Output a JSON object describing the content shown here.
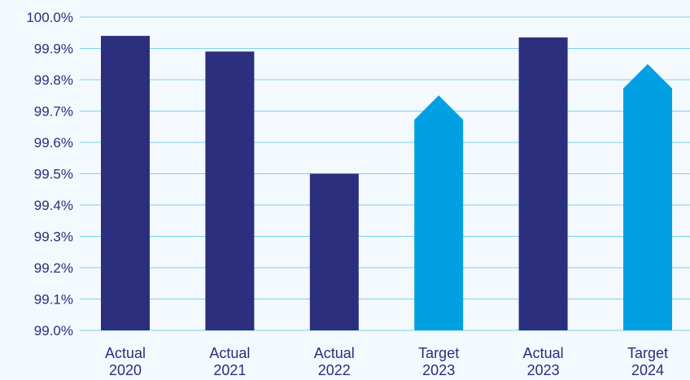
{
  "chart_data": {
    "type": "bar",
    "categories": [
      [
        "Actual",
        "2020"
      ],
      [
        "Actual",
        "2021"
      ],
      [
        "Actual",
        "2022"
      ],
      [
        "Target",
        "2023"
      ],
      [
        "Actual",
        "2023"
      ],
      [
        "Target",
        "2024"
      ]
    ],
    "values": [
      99.94,
      99.89,
      99.5,
      99.75,
      99.935,
      99.85
    ],
    "bar_kind": [
      "actual",
      "actual",
      "actual",
      "target",
      "actual",
      "target"
    ],
    "title": "",
    "xlabel": "",
    "ylabel": "",
    "ylim": [
      99.0,
      100.0
    ],
    "yticks": [
      99.0,
      99.1,
      99.2,
      99.3,
      99.4,
      99.5,
      99.6,
      99.7,
      99.8,
      99.9,
      100.0
    ],
    "ytick_labels": [
      "99.0%",
      "99.1%",
      "99.2%",
      "99.3%",
      "99.4%",
      "99.5%",
      "99.6%",
      "99.7%",
      "99.8%",
      "99.9%",
      "100.0%"
    ],
    "grid": true,
    "legend": "none",
    "target_marker": "arrow-up",
    "colors": {
      "actual": "#2b2f7e",
      "target": "#00a0e3",
      "grid": "#7fd3ea",
      "text": "#2a2f7a",
      "background": "#f3f9fd"
    }
  }
}
